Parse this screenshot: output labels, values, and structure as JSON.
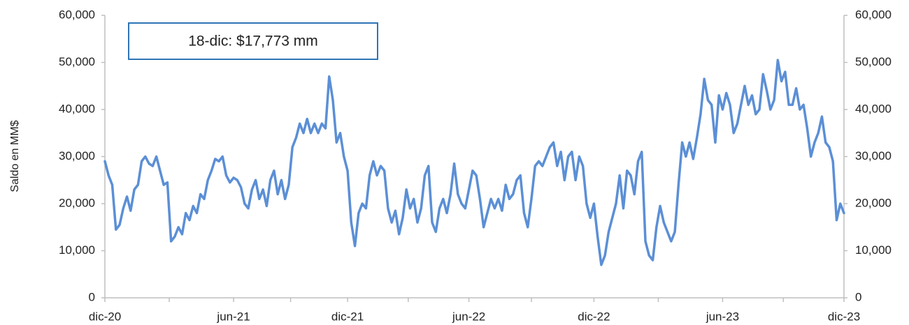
{
  "chart_data": {
    "type": "line",
    "ylabel": "Saldo en MM$",
    "annotation": "18-dic: $17,773 mm",
    "color": "#5b8fd6",
    "ylim": [
      0,
      60000
    ],
    "yticks": [
      0,
      {
        "value": 10000,
        "label": "10,000"
      },
      {
        "value": 20000,
        "label": "20,000"
      },
      {
        "value": 30000,
        "label": "30,000"
      },
      {
        "value": 40000,
        "label": "40,000"
      },
      {
        "value": 50000,
        "label": "50,000"
      },
      {
        "value": 60000,
        "label": "60,000"
      }
    ],
    "y2lim": [
      0,
      60000
    ],
    "y2ticks": [
      0,
      {
        "value": 10000,
        "label": "10,000"
      },
      {
        "value": 20000,
        "label": "20,000"
      },
      {
        "value": 30000,
        "label": "30,000"
      },
      {
        "value": 40000,
        "label": "40,000"
      },
      {
        "value": 50000,
        "label": "50,000"
      },
      {
        "value": 60000,
        "label": "60,000"
      }
    ],
    "categories": [
      "dic-20",
      null,
      null,
      null,
      null,
      null,
      null,
      null,
      null,
      null,
      null,
      null,
      null,
      null,
      null,
      null,
      null,
      null,
      null,
      null,
      null,
      null,
      null,
      null,
      null,
      null,
      null,
      null,
      null,
      null,
      null,
      null,
      null,
      null,
      null,
      "jun-21",
      null,
      null,
      null,
      null,
      null,
      null,
      null,
      null,
      null,
      null,
      null,
      null,
      null,
      null,
      null,
      null,
      null,
      null,
      null,
      null,
      null,
      null,
      null,
      null,
      null,
      null,
      null,
      null,
      null,
      null,
      "dic-21",
      null,
      null,
      null,
      null,
      null,
      null,
      null,
      null,
      null,
      null,
      null,
      null,
      null,
      null,
      null,
      null,
      null,
      null,
      null,
      null,
      null,
      null,
      null,
      null,
      null,
      null,
      null,
      null,
      null,
      null,
      null,
      null,
      "jun-22",
      null,
      null,
      null,
      null,
      null,
      null,
      null,
      null,
      null,
      null,
      null,
      null,
      null,
      null,
      null,
      null,
      null,
      null,
      null,
      null,
      null,
      null,
      null,
      null,
      null,
      null,
      null,
      null,
      null,
      null,
      null,
      null,
      null,
      "dic-22",
      null,
      null,
      null,
      null,
      null,
      null,
      null,
      null,
      null,
      null,
      null,
      null,
      null,
      null,
      null,
      null,
      null,
      null,
      null,
      null,
      null,
      null,
      null,
      null,
      null,
      null,
      null,
      null,
      null,
      null,
      null,
      null,
      null,
      null,
      "jun-23",
      null,
      null,
      null,
      null,
      null,
      null,
      null,
      null,
      null,
      null,
      null,
      null,
      null,
      null,
      null,
      null,
      null,
      null,
      null,
      null,
      null,
      null,
      null,
      null,
      null,
      null,
      null,
      null,
      null,
      null,
      null,
      null,
      "dic-23"
    ],
    "values": [
      29000,
      26000,
      24000,
      14500,
      15500,
      19000,
      21500,
      18500,
      23000,
      24000,
      29000,
      30000,
      28500,
      28000,
      30000,
      27000,
      24000,
      24500,
      12000,
      13000,
      15000,
      13500,
      18000,
      16500,
      19500,
      18000,
      22000,
      21000,
      25000,
      27000,
      29500,
      29000,
      30000,
      26000,
      24500,
      25500,
      25000,
      23500,
      20000,
      19000,
      23000,
      25000,
      21000,
      23000,
      19500,
      25000,
      27000,
      22000,
      25000,
      21000,
      24000,
      32000,
      34000,
      37000,
      35000,
      38000,
      35000,
      37000,
      35000,
      37000,
      36000,
      47000,
      42000,
      33000,
      35000,
      30000,
      27000,
      16000,
      11000,
      18000,
      20000,
      19000,
      26000,
      29000,
      26000,
      28000,
      27000,
      19000,
      16000,
      18500,
      13500,
      17000,
      23000,
      19000,
      21000,
      16000,
      19000,
      26000,
      28000,
      16000,
      14000,
      19000,
      21000,
      18000,
      22000,
      28500,
      22000,
      20000,
      19000,
      23000,
      27000,
      26000,
      21000,
      15000,
      18000,
      21000,
      19000,
      21000,
      18500,
      24000,
      21000,
      22000,
      25000,
      26000,
      18000,
      15000,
      21000,
      28000,
      29000,
      28000,
      30000,
      32000,
      33000,
      28000,
      31000,
      25000,
      30000,
      31000,
      25000,
      30000,
      28000,
      20000,
      17000,
      20000,
      13000,
      7000,
      9000,
      14000,
      17000,
      20000,
      26000,
      19000,
      27000,
      26000,
      22000,
      29000,
      31000,
      12000,
      9000,
      8000,
      15000,
      19500,
      16000,
      14000,
      12000,
      14000,
      24000,
      33000,
      30000,
      33000,
      29500,
      34000,
      39000,
      46500,
      42000,
      41000,
      33000,
      43000,
      40000,
      43500,
      41000,
      35000,
      37000,
      41000,
      45000,
      41000,
      43000,
      39000,
      40000,
      47500,
      44000,
      40000,
      42000,
      50500,
      46000,
      48000,
      41000,
      41000,
      44500,
      40000,
      41000,
      36000,
      30000,
      33000,
      35000,
      38500,
      33000,
      32000,
      29000,
      16500,
      20000,
      18000
    ]
  }
}
